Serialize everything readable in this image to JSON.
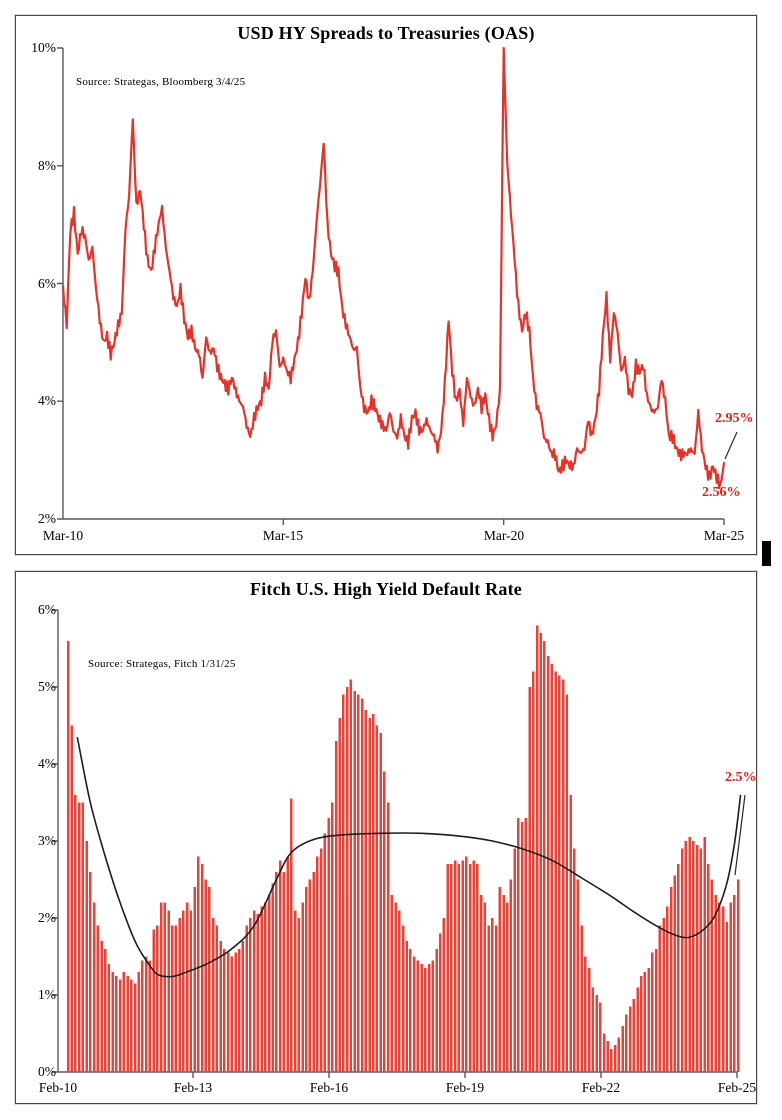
{
  "page": {
    "background": "#ffffff"
  },
  "charts": [
    {
      "title": "USD HY Spreads to Treasuries (OAS)",
      "source": "Source: Strategas, Bloomberg 3/4/25",
      "y_ticks": [
        "10%",
        "8%",
        "6%",
        "4%",
        "2%"
      ],
      "x_ticks": [
        "Mar-10",
        "Mar-15",
        "Mar-20",
        "Mar-25"
      ],
      "annotations": {
        "end_value": "2.95%",
        "low_value": "2.56%"
      },
      "line_color": "#e5332a"
    },
    {
      "title": "Fitch U.S. High Yield Default Rate",
      "source": "Source: Strategas, Fitch 1/31/25",
      "y_ticks": [
        "6%",
        "5%",
        "4%",
        "3%",
        "2%",
        "1%",
        "0%"
      ],
      "x_ticks": [
        "Feb-10",
        "Feb-13",
        "Feb-16",
        "Feb-19",
        "Feb-22",
        "Feb-25"
      ],
      "annotations": {
        "end_value": "2.5%"
      },
      "bar_color": "#ec4137",
      "trend_color": "#1c1c1c"
    }
  ],
  "chart_data": [
    {
      "type": "line",
      "title": "USD HY Spreads to Treasuries (OAS)",
      "source": "Source: Strategas, Bloomberg 3/4/25",
      "x_start": "Mar-2010",
      "x_end": "Mar-2025",
      "frequency": "monthly",
      "ylim": [
        2,
        10
      ],
      "grid": false,
      "y_tick_labels": [
        "2%",
        "4%",
        "6%",
        "8%",
        "10%"
      ],
      "x_tick_labels": [
        "Mar-10",
        "Mar-15",
        "Mar-20",
        "Mar-25"
      ],
      "series": [
        {
          "name": "USD HY OAS (%)",
          "color": "#e5332a",
          "values": [
            5.95,
            5.3,
            6.9,
            7.2,
            6.5,
            6.9,
            6.8,
            6.4,
            6.6,
            5.9,
            5.4,
            5.0,
            5.1,
            4.8,
            5.0,
            5.3,
            5.5,
            6.9,
            7.5,
            8.8,
            7.3,
            7.6,
            7.0,
            6.4,
            6.2,
            6.6,
            7.0,
            7.3,
            6.6,
            6.2,
            5.8,
            5.6,
            5.9,
            5.4,
            5.1,
            5.2,
            4.9,
            4.8,
            4.4,
            5.1,
            4.8,
            4.9,
            4.6,
            4.4,
            4.3,
            4.2,
            4.4,
            4.2,
            4.0,
            3.9,
            3.6,
            3.4,
            3.7,
            3.9,
            4.0,
            4.4,
            4.2,
            5.0,
            5.2,
            4.6,
            4.7,
            4.5,
            4.4,
            4.7,
            5.0,
            5.5,
            6.1,
            5.7,
            6.2,
            7.0,
            7.7,
            8.4,
            7.0,
            6.5,
            6.3,
            6.2,
            5.6,
            5.3,
            5.1,
            4.9,
            4.9,
            4.2,
            3.9,
            3.8,
            4.0,
            3.9,
            3.7,
            3.6,
            3.5,
            3.8,
            3.5,
            3.4,
            3.7,
            3.4,
            3.3,
            3.7,
            3.8,
            3.5,
            3.5,
            3.7,
            3.5,
            3.4,
            3.2,
            3.5,
            4.3,
            5.4,
            4.5,
            4.0,
            4.2,
            3.6,
            4.4,
            4.1,
            3.9,
            4.2,
            3.9,
            4.1,
            3.7,
            3.4,
            3.6,
            4.2,
            10.0,
            8.0,
            7.2,
            6.4,
            5.6,
            5.2,
            5.5,
            5.2,
            4.4,
            3.9,
            3.8,
            3.4,
            3.3,
            3.1,
            3.1,
            2.8,
            2.9,
            3.0,
            2.9,
            2.9,
            3.2,
            3.1,
            3.2,
            3.7,
            3.4,
            3.7,
            4.2,
            5.1,
            5.8,
            4.7,
            5.5,
            5.2,
            4.5,
            4.7,
            4.2,
            4.1,
            4.6,
            4.5,
            4.6,
            4.1,
            3.9,
            3.8,
            3.9,
            4.4,
            4.0,
            3.4,
            3.4,
            3.2,
            3.1,
            3.1,
            3.1,
            3.2,
            3.1,
            3.8,
            3.2,
            2.9,
            2.7,
            2.9,
            2.7,
            2.56,
            2.95
          ]
        }
      ],
      "annotations": [
        {
          "label": "2.95%",
          "value": 2.95,
          "x": "Mar-2025"
        },
        {
          "label": "2.56%",
          "value": 2.56,
          "x": "Feb-2025"
        }
      ]
    },
    {
      "type": "bar",
      "title": "Fitch U.S. High Yield Default Rate",
      "source": "Source: Strategas, Fitch 1/31/25",
      "x_start": "Feb-2010",
      "x_end": "Feb-2025",
      "frequency": "monthly",
      "ylim": [
        0,
        6
      ],
      "grid": false,
      "y_tick_labels": [
        "0%",
        "1%",
        "2%",
        "3%",
        "4%",
        "5%",
        "6%"
      ],
      "x_tick_labels": [
        "Feb-10",
        "Feb-13",
        "Feb-16",
        "Feb-19",
        "Feb-22",
        "Feb-25"
      ],
      "color": "#ec4137",
      "values": [
        5.6,
        4.5,
        3.6,
        3.5,
        3.5,
        3.0,
        2.6,
        2.2,
        1.9,
        1.7,
        1.6,
        1.4,
        1.3,
        1.25,
        1.2,
        1.3,
        1.25,
        1.2,
        1.15,
        1.3,
        1.45,
        1.5,
        1.45,
        1.85,
        1.9,
        2.2,
        2.2,
        2.1,
        1.9,
        1.9,
        2.0,
        2.1,
        2.2,
        2.1,
        2.4,
        2.8,
        2.7,
        2.5,
        2.4,
        2.0,
        1.9,
        1.7,
        1.6,
        1.55,
        1.5,
        1.55,
        1.6,
        1.7,
        1.9,
        2.0,
        2.1,
        2.05,
        2.15,
        2.2,
        2.3,
        2.45,
        2.6,
        2.75,
        2.6,
        2.8,
        3.55,
        2.1,
        2.0,
        2.2,
        2.4,
        2.5,
        2.6,
        2.8,
        2.9,
        3.1,
        3.3,
        3.5,
        4.3,
        4.6,
        4.9,
        5.0,
        5.1,
        4.95,
        4.9,
        4.85,
        4.7,
        4.6,
        4.65,
        4.5,
        4.4,
        3.9,
        3.5,
        2.3,
        2.2,
        2.1,
        1.9,
        1.7,
        1.6,
        1.5,
        1.45,
        1.4,
        1.35,
        1.4,
        1.45,
        1.6,
        1.8,
        2.0,
        2.7,
        2.7,
        2.75,
        2.7,
        2.75,
        2.8,
        2.7,
        2.75,
        2.7,
        2.3,
        2.2,
        1.9,
        2.0,
        1.9,
        2.4,
        2.3,
        2.2,
        2.5,
        2.9,
        3.3,
        3.25,
        3.3,
        5.0,
        5.2,
        5.8,
        5.7,
        5.6,
        5.4,
        5.3,
        5.2,
        5.15,
        5.1,
        4.9,
        3.6,
        2.9,
        2.5,
        1.9,
        1.5,
        1.35,
        1.1,
        1.0,
        0.9,
        0.5,
        0.4,
        0.3,
        0.35,
        0.45,
        0.6,
        0.75,
        0.85,
        0.95,
        1.1,
        1.25,
        1.3,
        1.35,
        1.55,
        1.6,
        1.9,
        2.0,
        2.15,
        2.4,
        2.55,
        2.7,
        2.9,
        3.0,
        3.05,
        3.0,
        2.95,
        2.9,
        3.05,
        2.7,
        2.5,
        2.3,
        2.2,
        2.15,
        1.95,
        2.2,
        2.3,
        2.5
      ],
      "trend_line": {
        "name": "smoothed default-rate trend",
        "color": "#1c1c1c",
        "points_month_value": [
          [
            2.5,
            4.35
          ],
          [
            6,
            3.5
          ],
          [
            10,
            2.8
          ],
          [
            14,
            2.2
          ],
          [
            18,
            1.7
          ],
          [
            21,
            1.45
          ],
          [
            24,
            1.27
          ],
          [
            28,
            1.24
          ],
          [
            32,
            1.3
          ],
          [
            38,
            1.42
          ],
          [
            44,
            1.6
          ],
          [
            50,
            1.9
          ],
          [
            56,
            2.5
          ],
          [
            60,
            2.85
          ],
          [
            66,
            3.02
          ],
          [
            74,
            3.08
          ],
          [
            84,
            3.1
          ],
          [
            95,
            3.1
          ],
          [
            106,
            3.06
          ],
          [
            114,
            3.0
          ],
          [
            122,
            2.9
          ],
          [
            130,
            2.75
          ],
          [
            138,
            2.52
          ],
          [
            146,
            2.28
          ],
          [
            152,
            2.08
          ],
          [
            158,
            1.9
          ],
          [
            163,
            1.78
          ],
          [
            167,
            1.75
          ],
          [
            171,
            1.86
          ],
          [
            174,
            2.05
          ],
          [
            177,
            2.45
          ],
          [
            179,
            2.95
          ],
          [
            180.7,
            3.6
          ]
        ]
      },
      "annotations": [
        {
          "label": "2.5%",
          "value": 2.5,
          "x": "Feb-2025"
        }
      ]
    }
  ]
}
